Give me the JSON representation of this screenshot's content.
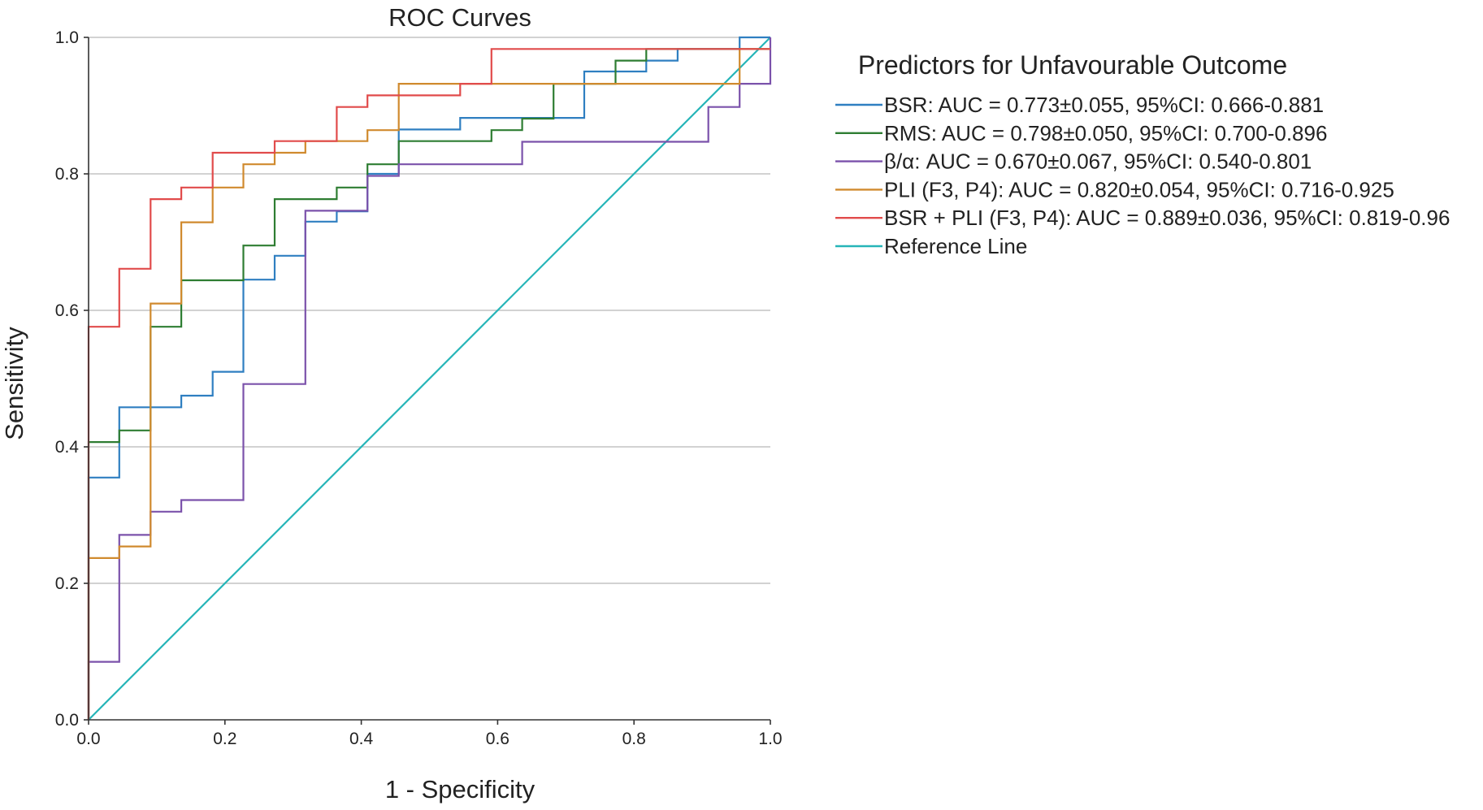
{
  "chart_data": {
    "type": "line",
    "title": "ROC Curves",
    "xlabel": "1 - Specificity",
    "ylabel": "Sensitivity",
    "xlim": [
      0,
      1
    ],
    "ylim": [
      0,
      1
    ],
    "grid": "horizontal",
    "x_ticks": [
      0.0,
      0.2,
      0.4,
      0.6,
      0.8,
      1.0
    ],
    "y_ticks": [
      0.0,
      0.2,
      0.4,
      0.6,
      0.8,
      1.0
    ],
    "x_tick_labels": [
      "0.0",
      "0.2",
      "0.4",
      "0.6",
      "0.8",
      "1.0"
    ],
    "y_tick_labels": [
      "0.0",
      "0.2",
      "0.4",
      "0.6",
      "0.8",
      "1.0"
    ],
    "legend_title": "Predictors for Unfavourable Outcome",
    "legend_position": "right",
    "series": [
      {
        "name": "BSR",
        "label": "BSR: AUC = 0.773±0.055, 95%CI: 0.666-0.881",
        "color": "#2f7fc1",
        "points": [
          [
            0,
            0
          ],
          [
            0,
            0.355
          ],
          [
            0.045,
            0.355
          ],
          [
            0.045,
            0.458
          ],
          [
            0.136,
            0.458
          ],
          [
            0.136,
            0.475
          ],
          [
            0.182,
            0.475
          ],
          [
            0.182,
            0.51
          ],
          [
            0.227,
            0.51
          ],
          [
            0.227,
            0.645
          ],
          [
            0.273,
            0.645
          ],
          [
            0.273,
            0.68
          ],
          [
            0.318,
            0.68
          ],
          [
            0.318,
            0.73
          ],
          [
            0.364,
            0.73
          ],
          [
            0.364,
            0.745
          ],
          [
            0.409,
            0.745
          ],
          [
            0.409,
            0.8
          ],
          [
            0.455,
            0.8
          ],
          [
            0.455,
            0.865
          ],
          [
            0.545,
            0.865
          ],
          [
            0.545,
            0.882
          ],
          [
            0.727,
            0.882
          ],
          [
            0.727,
            0.95
          ],
          [
            0.818,
            0.95
          ],
          [
            0.818,
            0.966
          ],
          [
            0.864,
            0.966
          ],
          [
            0.864,
            0.983
          ],
          [
            0.955,
            0.983
          ],
          [
            0.955,
            1.0
          ],
          [
            1.0,
            1.0
          ]
        ]
      },
      {
        "name": "RMS",
        "label": "RMS: AUC = 0.798±0.050, 95%CI: 0.700-0.896",
        "color": "#2e7d32",
        "points": [
          [
            0,
            0
          ],
          [
            0,
            0.407
          ],
          [
            0.045,
            0.407
          ],
          [
            0.045,
            0.424
          ],
          [
            0.091,
            0.424
          ],
          [
            0.091,
            0.576
          ],
          [
            0.136,
            0.576
          ],
          [
            0.136,
            0.644
          ],
          [
            0.227,
            0.644
          ],
          [
            0.227,
            0.695
          ],
          [
            0.273,
            0.695
          ],
          [
            0.273,
            0.763
          ],
          [
            0.364,
            0.763
          ],
          [
            0.364,
            0.78
          ],
          [
            0.409,
            0.78
          ],
          [
            0.409,
            0.814
          ],
          [
            0.455,
            0.814
          ],
          [
            0.455,
            0.848
          ],
          [
            0.591,
            0.848
          ],
          [
            0.591,
            0.864
          ],
          [
            0.636,
            0.864
          ],
          [
            0.636,
            0.881
          ],
          [
            0.682,
            0.881
          ],
          [
            0.682,
            0.932
          ],
          [
            0.773,
            0.932
          ],
          [
            0.773,
            0.966
          ],
          [
            0.818,
            0.966
          ],
          [
            0.818,
            0.983
          ],
          [
            1.0,
            0.983
          ]
        ]
      },
      {
        "name": "β/α",
        "label": "β/α: AUC = 0.670±0.067, 95%CI: 0.540-0.801",
        "color": "#7b52ab",
        "points": [
          [
            0,
            0
          ],
          [
            0,
            0.085
          ],
          [
            0.045,
            0.085
          ],
          [
            0.045,
            0.271
          ],
          [
            0.091,
            0.271
          ],
          [
            0.091,
            0.305
          ],
          [
            0.136,
            0.305
          ],
          [
            0.136,
            0.322
          ],
          [
            0.227,
            0.322
          ],
          [
            0.227,
            0.492
          ],
          [
            0.318,
            0.492
          ],
          [
            0.318,
            0.746
          ],
          [
            0.409,
            0.746
          ],
          [
            0.409,
            0.797
          ],
          [
            0.455,
            0.797
          ],
          [
            0.455,
            0.814
          ],
          [
            0.636,
            0.814
          ],
          [
            0.636,
            0.847
          ],
          [
            0.909,
            0.847
          ],
          [
            0.909,
            0.898
          ],
          [
            0.955,
            0.898
          ],
          [
            0.955,
            0.932
          ],
          [
            1.0,
            0.932
          ],
          [
            1.0,
            1.0
          ]
        ]
      },
      {
        "name": "PLI (F3, P4)",
        "label": "PLI (F3, P4): AUC = 0.820±0.054, 95%CI: 0.716-0.925",
        "color": "#d08a2e",
        "points": [
          [
            0,
            0
          ],
          [
            0,
            0.237
          ],
          [
            0.045,
            0.237
          ],
          [
            0.045,
            0.254
          ],
          [
            0.091,
            0.254
          ],
          [
            0.091,
            0.61
          ],
          [
            0.136,
            0.61
          ],
          [
            0.136,
            0.729
          ],
          [
            0.182,
            0.729
          ],
          [
            0.182,
            0.78
          ],
          [
            0.227,
            0.78
          ],
          [
            0.227,
            0.814
          ],
          [
            0.273,
            0.814
          ],
          [
            0.273,
            0.831
          ],
          [
            0.318,
            0.831
          ],
          [
            0.318,
            0.848
          ],
          [
            0.409,
            0.848
          ],
          [
            0.409,
            0.864
          ],
          [
            0.455,
            0.864
          ],
          [
            0.455,
            0.932
          ],
          [
            0.955,
            0.932
          ],
          [
            0.955,
            0.983
          ],
          [
            1.0,
            0.983
          ]
        ]
      },
      {
        "name": "BSR + PLI (F3, P4)",
        "label": "BSR + PLI (F3, P4): AUC = 0.889±0.036, 95%CI: 0.819-0.96",
        "color": "#e14b4b",
        "points": [
          [
            0,
            0
          ],
          [
            0,
            0.576
          ],
          [
            0.045,
            0.576
          ],
          [
            0.045,
            0.661
          ],
          [
            0.091,
            0.661
          ],
          [
            0.091,
            0.763
          ],
          [
            0.136,
            0.763
          ],
          [
            0.136,
            0.78
          ],
          [
            0.182,
            0.78
          ],
          [
            0.182,
            0.831
          ],
          [
            0.273,
            0.831
          ],
          [
            0.273,
            0.848
          ],
          [
            0.364,
            0.848
          ],
          [
            0.364,
            0.898
          ],
          [
            0.409,
            0.898
          ],
          [
            0.409,
            0.915
          ],
          [
            0.545,
            0.915
          ],
          [
            0.545,
            0.932
          ],
          [
            0.591,
            0.932
          ],
          [
            0.591,
            0.983
          ],
          [
            1.0,
            0.983
          ]
        ]
      },
      {
        "name": "Reference Line",
        "label": "Reference Line",
        "color": "#26b5b8",
        "points": [
          [
            0,
            0
          ],
          [
            1,
            1
          ]
        ]
      }
    ]
  }
}
